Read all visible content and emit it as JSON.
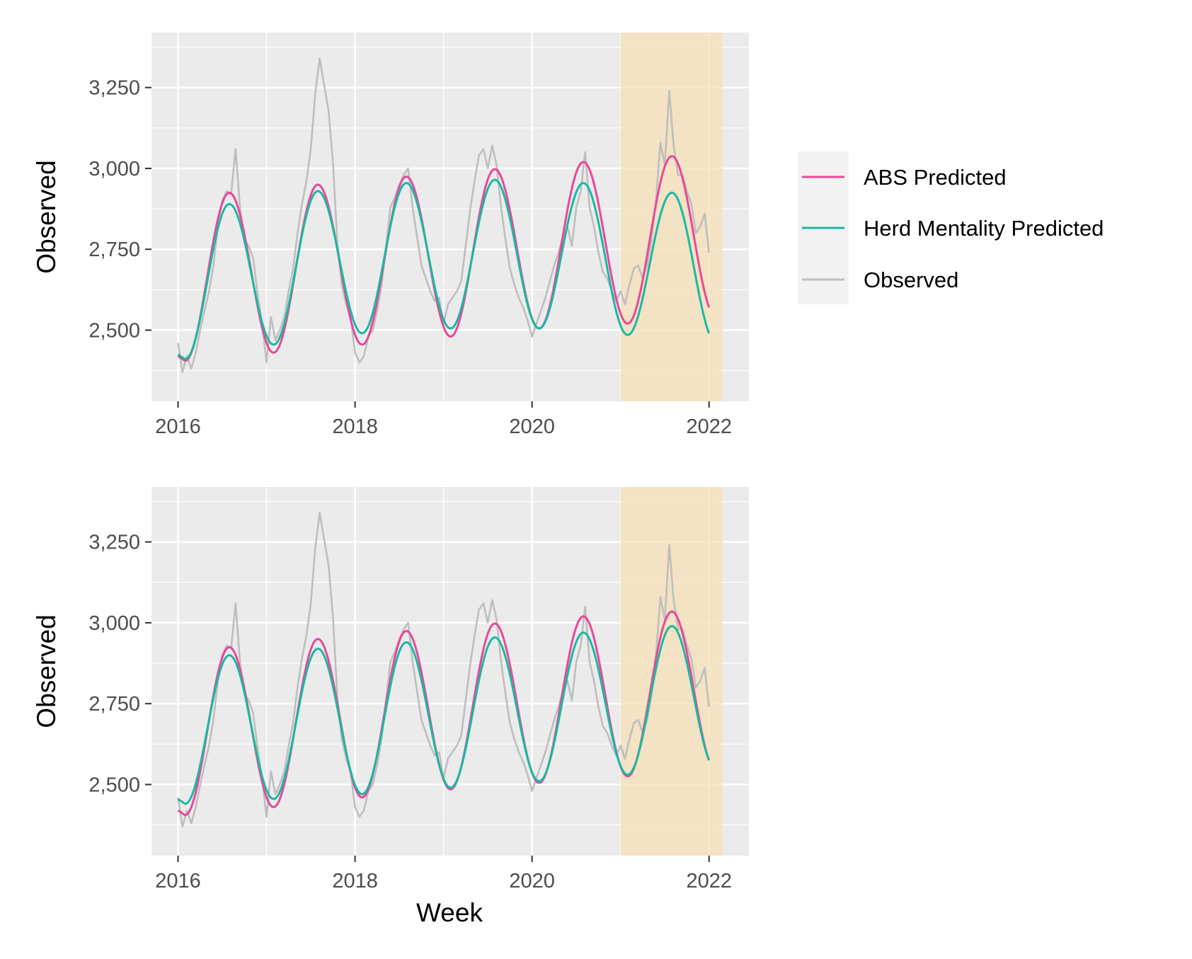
{
  "chart_data": [
    {
      "type": "line",
      "panel": "top",
      "xlabel": "",
      "ylabel": "Observed",
      "xlim": [
        2015.7,
        2022.45
      ],
      "ylim": [
        2280,
        3420
      ],
      "x_ticks": [
        2016,
        2018,
        2020,
        2022
      ],
      "x_tick_labels": [
        "2016",
        "2018",
        "2020",
        "2022"
      ],
      "y_ticks": [
        2500,
        2750,
        3000,
        3250
      ],
      "y_tick_labels": [
        "2,500",
        "2,750",
        "3,000",
        "3,250"
      ],
      "grid": true,
      "forecast_region": [
        2021.0,
        2022.15
      ],
      "series": [
        {
          "name": "Observed",
          "color": "#bebebe",
          "x": [
            2016.0,
            2016.05,
            2016.1,
            2016.15,
            2016.2,
            2016.25,
            2016.3,
            2016.35,
            2016.4,
            2016.45,
            2016.5,
            2016.55,
            2016.6,
            2016.65,
            2016.7,
            2016.75,
            2016.8,
            2016.85,
            2016.9,
            2016.95,
            2017.0,
            2017.05,
            2017.1,
            2017.15,
            2017.2,
            2017.25,
            2017.3,
            2017.35,
            2017.4,
            2017.45,
            2017.5,
            2017.55,
            2017.6,
            2017.65,
            2017.7,
            2017.75,
            2017.8,
            2017.85,
            2017.9,
            2017.95,
            2018.0,
            2018.05,
            2018.1,
            2018.15,
            2018.2,
            2018.25,
            2018.3,
            2018.35,
            2018.4,
            2018.45,
            2018.5,
            2018.55,
            2018.6,
            2018.65,
            2018.7,
            2018.75,
            2018.8,
            2018.85,
            2018.9,
            2018.95,
            2019.0,
            2019.05,
            2019.1,
            2019.15,
            2019.2,
            2019.25,
            2019.3,
            2019.35,
            2019.4,
            2019.45,
            2019.5,
            2019.55,
            2019.6,
            2019.65,
            2019.7,
            2019.75,
            2019.8,
            2019.85,
            2019.9,
            2019.95,
            2020.0,
            2020.05,
            2020.1,
            2020.15,
            2020.2,
            2020.25,
            2020.3,
            2020.35,
            2020.4,
            2020.45,
            2020.5,
            2020.55,
            2020.6,
            2020.65,
            2020.7,
            2020.75,
            2020.8,
            2020.85,
            2020.9,
            2020.95,
            2021.0,
            2021.05,
            2021.1,
            2021.15,
            2021.2,
            2021.25,
            2021.3,
            2021.35,
            2021.4,
            2021.45,
            2021.5,
            2021.55,
            2021.6,
            2021.65,
            2021.7,
            2021.75,
            2021.8,
            2021.85,
            2021.9,
            2021.95,
            2022.0
          ],
          "values": [
            2460,
            2370,
            2420,
            2380,
            2430,
            2500,
            2560,
            2620,
            2700,
            2820,
            2900,
            2930,
            2920,
            3060,
            2880,
            2780,
            2760,
            2720,
            2610,
            2520,
            2400,
            2540,
            2470,
            2500,
            2540,
            2620,
            2690,
            2800,
            2890,
            2960,
            3060,
            3230,
            3340,
            3260,
            3180,
            3020,
            2770,
            2640,
            2580,
            2540,
            2430,
            2400,
            2420,
            2480,
            2500,
            2560,
            2640,
            2760,
            2880,
            2910,
            2950,
            2980,
            3000,
            2880,
            2790,
            2700,
            2660,
            2620,
            2590,
            2600,
            2520,
            2580,
            2600,
            2620,
            2650,
            2760,
            2870,
            2960,
            3040,
            3060,
            3000,
            3070,
            3010,
            2880,
            2780,
            2690,
            2640,
            2600,
            2570,
            2530,
            2480,
            2520,
            2560,
            2600,
            2650,
            2700,
            2740,
            2790,
            2820,
            2760,
            2880,
            2930,
            3050,
            2880,
            2820,
            2740,
            2680,
            2660,
            2620,
            2590,
            2620,
            2580,
            2640,
            2690,
            2700,
            2660,
            2700,
            2780,
            2900,
            3080,
            3010,
            3240,
            3070,
            2980,
            2980,
            2930,
            2890,
            2800,
            2820,
            2860,
            2740
          ]
        },
        {
          "name": "ABS Predicted",
          "color": "#e8489a",
          "peak_x": [
            2016.58,
            2017.58,
            2018.58,
            2019.58,
            2020.58,
            2021.58
          ],
          "peaks": [
            2925,
            2950,
            2975,
            2998,
            3020,
            3038
          ],
          "trough_x": [
            2016.08,
            2017.08,
            2018.08,
            2019.08,
            2020.08,
            2021.08
          ],
          "troughs": [
            2405,
            2430,
            2455,
            2480,
            2505,
            2520
          ],
          "x_end": 2022.0,
          "end_value": 2570
        },
        {
          "name": "Herd Mentality Predicted",
          "color": "#1bb8a2",
          "peak_x": [
            2016.58,
            2017.58,
            2018.58,
            2019.58,
            2020.58,
            2021.58
          ],
          "peaks": [
            2890,
            2930,
            2955,
            2965,
            2955,
            2925
          ],
          "trough_x": [
            2016.08,
            2017.08,
            2018.08,
            2019.08,
            2020.08,
            2021.08
          ],
          "troughs": [
            2410,
            2455,
            2490,
            2505,
            2505,
            2485
          ],
          "x_end": 2022.0,
          "end_value": 2490
        }
      ]
    },
    {
      "type": "line",
      "panel": "bottom",
      "xlabel": "Week",
      "ylabel": "Observed",
      "xlim": [
        2015.7,
        2022.45
      ],
      "ylim": [
        2280,
        3420
      ],
      "x_ticks": [
        2016,
        2018,
        2020,
        2022
      ],
      "x_tick_labels": [
        "2016",
        "2018",
        "2020",
        "2022"
      ],
      "y_ticks": [
        2500,
        2750,
        3000,
        3250
      ],
      "y_tick_labels": [
        "2,500",
        "2,750",
        "3,000",
        "3,250"
      ],
      "grid": true,
      "forecast_region": [
        2021.0,
        2022.15
      ],
      "series": [
        {
          "name": "Observed",
          "color": "#bebebe",
          "x": [
            2016.0,
            2016.05,
            2016.1,
            2016.15,
            2016.2,
            2016.25,
            2016.3,
            2016.35,
            2016.4,
            2016.45,
            2016.5,
            2016.55,
            2016.6,
            2016.65,
            2016.7,
            2016.75,
            2016.8,
            2016.85,
            2016.9,
            2016.95,
            2017.0,
            2017.05,
            2017.1,
            2017.15,
            2017.2,
            2017.25,
            2017.3,
            2017.35,
            2017.4,
            2017.45,
            2017.5,
            2017.55,
            2017.6,
            2017.65,
            2017.7,
            2017.75,
            2017.8,
            2017.85,
            2017.9,
            2017.95,
            2018.0,
            2018.05,
            2018.1,
            2018.15,
            2018.2,
            2018.25,
            2018.3,
            2018.35,
            2018.4,
            2018.45,
            2018.5,
            2018.55,
            2018.6,
            2018.65,
            2018.7,
            2018.75,
            2018.8,
            2018.85,
            2018.9,
            2018.95,
            2019.0,
            2019.05,
            2019.1,
            2019.15,
            2019.2,
            2019.25,
            2019.3,
            2019.35,
            2019.4,
            2019.45,
            2019.5,
            2019.55,
            2019.6,
            2019.65,
            2019.7,
            2019.75,
            2019.8,
            2019.85,
            2019.9,
            2019.95,
            2020.0,
            2020.05,
            2020.1,
            2020.15,
            2020.2,
            2020.25,
            2020.3,
            2020.35,
            2020.4,
            2020.45,
            2020.5,
            2020.55,
            2020.6,
            2020.65,
            2020.7,
            2020.75,
            2020.8,
            2020.85,
            2020.9,
            2020.95,
            2021.0,
            2021.05,
            2021.1,
            2021.15,
            2021.2,
            2021.25,
            2021.3,
            2021.35,
            2021.4,
            2021.45,
            2021.5,
            2021.55,
            2021.6,
            2021.65,
            2021.7,
            2021.75,
            2021.8,
            2021.85,
            2021.9,
            2021.95,
            2022.0
          ],
          "values": [
            2460,
            2370,
            2420,
            2380,
            2430,
            2500,
            2560,
            2620,
            2700,
            2820,
            2900,
            2930,
            2920,
            3060,
            2880,
            2780,
            2760,
            2720,
            2610,
            2520,
            2400,
            2540,
            2470,
            2500,
            2540,
            2620,
            2690,
            2800,
            2890,
            2960,
            3060,
            3230,
            3340,
            3260,
            3180,
            3020,
            2770,
            2640,
            2580,
            2540,
            2430,
            2400,
            2420,
            2480,
            2500,
            2560,
            2640,
            2760,
            2880,
            2910,
            2950,
            2980,
            3000,
            2880,
            2790,
            2700,
            2660,
            2620,
            2590,
            2600,
            2520,
            2580,
            2600,
            2620,
            2650,
            2760,
            2870,
            2960,
            3040,
            3060,
            3000,
            3070,
            3010,
            2880,
            2780,
            2690,
            2640,
            2600,
            2570,
            2530,
            2480,
            2520,
            2560,
            2600,
            2650,
            2700,
            2740,
            2790,
            2820,
            2760,
            2880,
            2930,
            3050,
            2880,
            2820,
            2740,
            2680,
            2660,
            2620,
            2590,
            2620,
            2580,
            2640,
            2690,
            2700,
            2660,
            2700,
            2780,
            2900,
            3080,
            3010,
            3240,
            3070,
            2980,
            2980,
            2930,
            2890,
            2800,
            2820,
            2860,
            2740
          ]
        },
        {
          "name": "ABS Predicted",
          "color": "#e8489a",
          "peak_x": [
            2016.58,
            2017.58,
            2018.58,
            2019.58,
            2020.58,
            2021.58
          ],
          "peaks": [
            2925,
            2950,
            2975,
            2998,
            3020,
            3035
          ],
          "trough_x": [
            2016.08,
            2017.08,
            2018.08,
            2019.08,
            2020.08,
            2021.08
          ],
          "troughs": [
            2405,
            2430,
            2460,
            2485,
            2505,
            2525
          ],
          "x_end": 2022.0,
          "end_value": 2575
        },
        {
          "name": "Herd Mentality Predicted",
          "color": "#1bb8a2",
          "peak_x": [
            2016.58,
            2017.58,
            2018.58,
            2019.58,
            2020.58,
            2021.58
          ],
          "peaks": [
            2900,
            2920,
            2940,
            2955,
            2970,
            2990
          ],
          "trough_x": [
            2016.08,
            2017.08,
            2018.08,
            2019.08,
            2020.08,
            2021.08
          ],
          "troughs": [
            2440,
            2455,
            2470,
            2490,
            2510,
            2530
          ],
          "x_end": 2022.0,
          "end_value": 2575
        }
      ]
    }
  ],
  "legend": {
    "placement": "right",
    "items": [
      {
        "label": "ABS Predicted",
        "color": "#e8489a"
      },
      {
        "label": "Herd Mentality Predicted",
        "color": "#1bb8a2"
      },
      {
        "label": "Observed",
        "color": "#bebebe"
      }
    ]
  },
  "colors": {
    "panel_background": "#ebebeb",
    "grid": "#ffffff",
    "forecast_fill": "#f5deb3"
  }
}
